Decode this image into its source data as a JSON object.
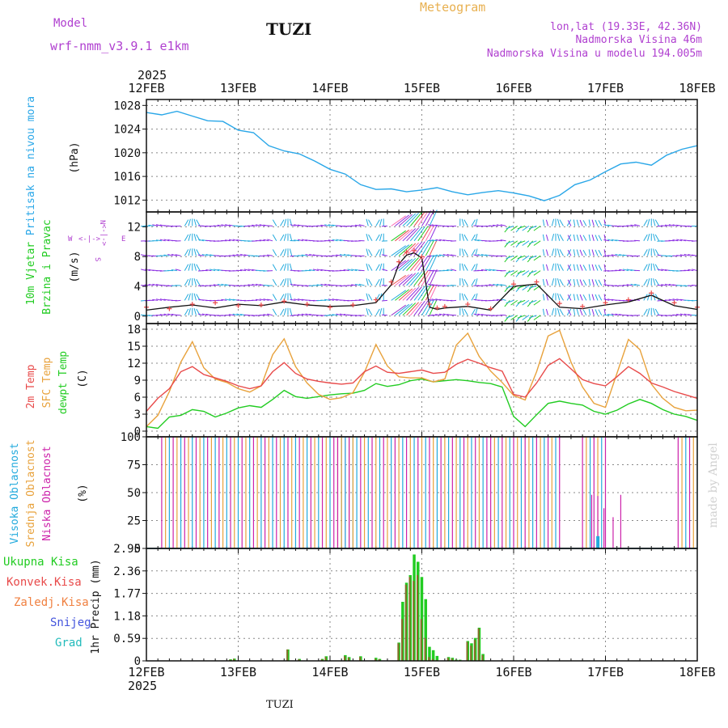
{
  "header": {
    "model_label": "Model",
    "model_name": "wrf-nmm_v3.9.1  e1km",
    "station": "TUZI",
    "chart_title": "Meteogram",
    "lonlat": "lon,lat (19.33E, 42.36N)",
    "altitude": "Nadmorska Visina 46m",
    "model_altitude": "Nadmorska Visina u modelu 194.005m",
    "footer_station": "TUZI",
    "watermark": "made by Angel"
  },
  "colors": {
    "pressure": "#2aa7e8",
    "temp2m": "#e84a4a",
    "sfctemp": "#e8a23c",
    "dewpt": "#22cc22",
    "high_cloud": "#22aadd",
    "mid_cloud": "#e8a23c",
    "low_cloud": "#cc22aa",
    "total_rain": "#22cc22",
    "conv_rain": "#e84a4a",
    "purple_text": "#b040d0",
    "title_orange": "#e8b050"
  },
  "chart_data": [
    {
      "type": "line",
      "panel": "pressure",
      "ylabel": "Pritisak na nivou mora",
      "unit": "(hPa)",
      "ylim": [
        1010,
        1029
      ],
      "yticks": [
        1012,
        1016,
        1020,
        1024,
        1028
      ],
      "x": [
        0,
        4,
        8,
        12,
        16,
        20,
        24,
        28,
        32,
        36,
        40,
        44,
        48,
        52,
        56,
        60,
        64,
        68,
        72,
        76,
        80,
        84,
        88,
        92,
        96,
        100,
        104,
        108,
        112,
        116,
        120,
        124,
        128,
        132,
        136,
        140,
        144
      ],
      "series": [
        {
          "name": "",
          "values": [
            1026.8,
            1026.4,
            1027.0,
            1026.2,
            1025.4,
            1025.3,
            1023.8,
            1023.4,
            1021.2,
            1020.3,
            1019.8,
            1018.6,
            1017.2,
            1016.4,
            1014.6,
            1013.8,
            1013.9,
            1013.4,
            1013.7,
            1014.1,
            1013.4,
            1012.9,
            1013.3,
            1013.6,
            1013.2,
            1012.7,
            1011.9,
            1012.8,
            1014.6,
            1015.4,
            1016.8,
            1018.1,
            1018.4,
            1017.9,
            1019.6,
            1020.6,
            1021.2
          ]
        }
      ]
    },
    {
      "type": "line",
      "panel": "wind",
      "ylabel": "10m Vjetar Brzina i Pravac",
      "unit": "(m/s)",
      "ylim": [
        -1,
        14
      ],
      "yticks": [
        0,
        4,
        8,
        12
      ],
      "compass": {
        "north": "N",
        "south": "S",
        "west": "W",
        "east": "E"
      },
      "x": [
        0,
        6,
        12,
        18,
        24,
        30,
        36,
        42,
        48,
        54,
        60,
        64,
        66,
        68,
        70,
        72,
        74,
        76,
        78,
        84,
        90,
        96,
        102,
        108,
        114,
        120,
        126,
        132,
        138,
        144
      ],
      "series": [
        {
          "name": "",
          "values": [
            0.8,
            1.2,
            1.5,
            1.1,
            1.6,
            1.4,
            1.9,
            1.5,
            1.3,
            1.4,
            1.8,
            4.2,
            7.0,
            8.2,
            8.5,
            7.8,
            1.2,
            0.9,
            1.1,
            1.3,
            0.8,
            4.0,
            4.3,
            1.2,
            1.0,
            1.5,
            1.9,
            2.8,
            1.4,
            0.9
          ]
        },
        {
          "name": "",
          "values": [
            1.2,
            1.0,
            1.6,
            1.8,
            1.4,
            1.5,
            2.0,
            1.6,
            1.2,
            1.5,
            2.2,
            4.6,
            7.3,
            8.6,
            8.8,
            8.0,
            1.6,
            1.1,
            1.3,
            1.6,
            1.0,
            4.3,
            4.6,
            1.7,
            1.3,
            1.8,
            2.2,
            3.1,
            1.8,
            1.2
          ]
        }
      ]
    },
    {
      "type": "line",
      "panel": "temperature",
      "ylabel": [
        "2m Temp",
        "SFC Temp",
        "dewpt Temp"
      ],
      "unit": "(C)",
      "ylim": [
        -1,
        19
      ],
      "yticks": [
        0,
        3,
        6,
        9,
        12,
        15,
        18
      ],
      "x": [
        0,
        3,
        6,
        9,
        12,
        15,
        18,
        21,
        24,
        27,
        30,
        33,
        36,
        39,
        42,
        45,
        48,
        51,
        54,
        57,
        60,
        63,
        66,
        69,
        72,
        75,
        78,
        81,
        84,
        87,
        90,
        93,
        96,
        99,
        102,
        105,
        108,
        111,
        114,
        117,
        120,
        123,
        126,
        129,
        132,
        135,
        138,
        141,
        144
      ],
      "series": [
        {
          "name": "2m Temp",
          "values": [
            3.5,
            5.8,
            7.5,
            10.5,
            11.4,
            10,
            9.4,
            8.8,
            8,
            7.5,
            8,
            10.5,
            12.1,
            10.2,
            9.2,
            8.8,
            8.5,
            8.3,
            8.5,
            10.5,
            11.5,
            10.4,
            10.2,
            10.5,
            10.8,
            10.2,
            10.4,
            11.8,
            12.7,
            12,
            11.2,
            10.6,
            6.5,
            6,
            8.5,
            11.6,
            12.8,
            11,
            9.1,
            8.4,
            8,
            9.6,
            11.4,
            10.2,
            8.5,
            7.8,
            7,
            6.4,
            5.8
          ]
        },
        {
          "name": "SFC Temp",
          "values": [
            0.8,
            2.8,
            7,
            12.2,
            15.8,
            11.2,
            9.2,
            8.6,
            7.5,
            6.9,
            8,
            13.5,
            16.3,
            11.4,
            8.5,
            6.5,
            5.6,
            5.9,
            6.8,
            10.4,
            15.3,
            11.5,
            9.6,
            9.4,
            9.4,
            8.7,
            9.2,
            15.2,
            17.3,
            13.2,
            10.6,
            8.6,
            6.3,
            5.5,
            10.5,
            16.8,
            17.8,
            12.2,
            7.8,
            4.9,
            4.2,
            10.2,
            16.2,
            14.4,
            8.3,
            5.8,
            4.2,
            3.6,
            3.7
          ]
        },
        {
          "name": "dewpt Temp",
          "values": [
            0.8,
            0.5,
            2.5,
            2.8,
            3.8,
            3.5,
            2.5,
            3.2,
            4.1,
            4.5,
            4.2,
            5.6,
            7.2,
            6.1,
            5.8,
            6.1,
            6.4,
            6.6,
            6.7,
            7.2,
            8.4,
            7.9,
            8.2,
            8.9,
            9.2,
            8.7,
            8.9,
            9.1,
            8.9,
            8.6,
            8.4,
            7.8,
            2.6,
            0.8,
            2.9,
            4.9,
            5.3,
            4.9,
            4.6,
            3.5,
            3.0,
            3.7,
            4.8,
            5.6,
            4.9,
            3.8,
            3.0,
            2.6,
            1.9
          ]
        }
      ]
    },
    {
      "type": "bar",
      "panel": "clouds",
      "ylabel": [
        "Visoka Oblacnost",
        "Srednja Oblacnost",
        "Niska Oblacnost"
      ],
      "unit": "(%)",
      "ylim": [
        0,
        100
      ],
      "yticks": [
        0,
        25,
        50,
        75,
        100
      ],
      "cloudy_periods_hours": [
        [
          4,
          54
        ],
        [
          50,
          89
        ],
        [
          90,
          108
        ],
        [
          114,
          120
        ],
        [
          139,
          144
        ]
      ],
      "sparse_low_cloud": {
        "x": [
          116.4,
          118,
          119.6,
          122,
          124
        ],
        "values": [
          48,
          47,
          36,
          28,
          48
        ]
      }
    },
    {
      "type": "bar",
      "panel": "precipitation",
      "ylabel": "1hr Precip",
      "unit": "(mm)",
      "legend": [
        "Ukupna Kisa",
        "Konvek.Kisa",
        "Zaledj.Kisa",
        "Snijeg",
        "Grad"
      ],
      "ylim": [
        0,
        2.95
      ],
      "yticks": [
        0,
        0.59,
        1.18,
        1.77,
        2.36,
        2.95
      ],
      "x": [
        22,
        23,
        37,
        40,
        46,
        47,
        52,
        53,
        56,
        60,
        61,
        66,
        67,
        68,
        69,
        70,
        71,
        72,
        73,
        74,
        75,
        76,
        79,
        80,
        81,
        82,
        84,
        85,
        86,
        87,
        88
      ],
      "series": [
        {
          "name": "Ukupna Kisa",
          "values": [
            0.04,
            0.06,
            0.3,
            0.05,
            0.05,
            0.12,
            0.15,
            0.1,
            0.12,
            0.08,
            0.05,
            0.48,
            1.55,
            2.05,
            2.25,
            2.79,
            2.6,
            2.2,
            1.62,
            0.37,
            0.28,
            0.13,
            0.1,
            0.08,
            0.03,
            0.03,
            0.52,
            0.46,
            0.6,
            0.87,
            0.18
          ]
        },
        {
          "name": "Konvek.Kisa",
          "values": [
            0.03,
            0.05,
            0.3,
            0.04,
            0.04,
            0.1,
            0.12,
            0.08,
            0.1,
            0.05,
            0.04,
            0.46,
            1.1,
            2.0,
            2.2,
            2.1,
            2.25,
            1.1,
            0.6,
            0.1,
            0.05,
            0.02,
            0.08,
            0.06,
            0.02,
            0.02,
            0.5,
            0.4,
            0.55,
            0.85,
            0.15
          ]
        }
      ]
    },
    {
      "type": "axis",
      "panel": "time",
      "year": "2025",
      "date_labels": [
        "12FEB",
        "13FEB",
        "14FEB",
        "15FEB",
        "16FEB",
        "17FEB",
        "18FEB"
      ]
    }
  ]
}
